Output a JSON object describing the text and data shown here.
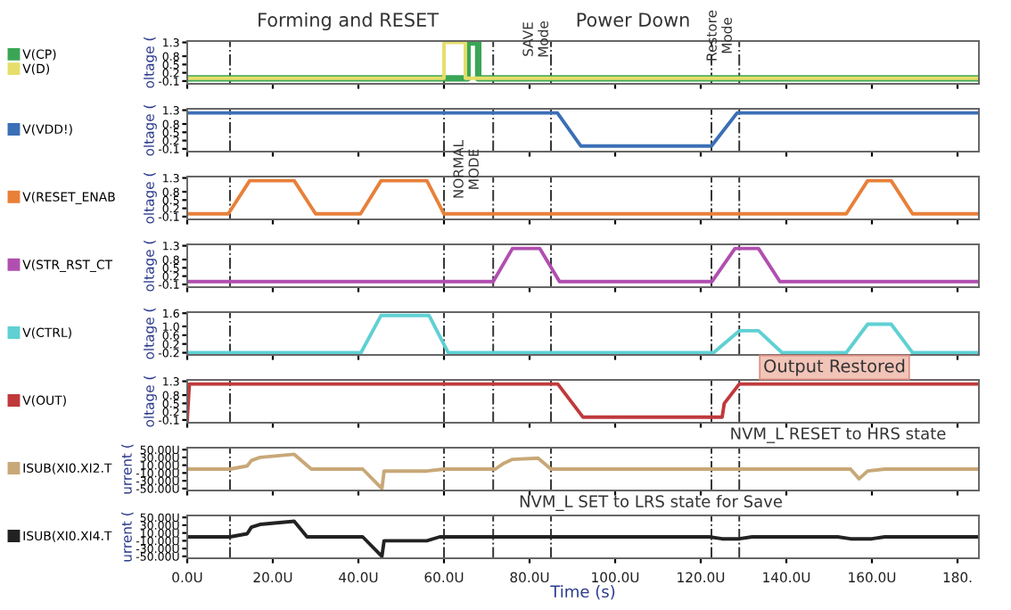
{
  "chart_data": [
    {
      "type": "line",
      "ylabel": "oltage (",
      "legend": "left",
      "tick_labels": "y",
      "xlim": [
        0,
        185
      ],
      "xticks": [
        0,
        20,
        40,
        60,
        80,
        100,
        120,
        140,
        160,
        180
      ],
      "ylim": [
        -0.2,
        1.35
      ],
      "yticks": [
        -0.1,
        0.2,
        0.5,
        0.8,
        1.3
      ],
      "series": [
        {
          "name": "V(CP)",
          "color": "#3aa655",
          "x": [
            0,
            65.5,
            65.5,
            68,
            68,
            185
          ],
          "values": [
            0,
            0,
            1.3,
            1.3,
            0,
            0
          ]
        },
        {
          "name": "V(D)",
          "color": "#e6de6a",
          "x": [
            0,
            60,
            60,
            65,
            65,
            185
          ],
          "values": [
            0,
            0,
            1.3,
            1.3,
            0,
            0
          ]
        }
      ],
      "ref_lines": [
        {
          "axis": "x",
          "value": 10
        },
        {
          "axis": "x",
          "value": 60
        },
        {
          "axis": "x",
          "value": 71.5
        },
        {
          "axis": "x",
          "value": 85
        },
        {
          "axis": "x",
          "value": 122.5
        },
        {
          "axis": "x",
          "value": 129
        }
      ],
      "annotations": [
        "Forming and RESET",
        "SAVE Mode",
        "Power Down",
        "Restore Mode"
      ]
    },
    {
      "type": "line",
      "ylabel": "oltage (",
      "legend": "left",
      "tick_labels": "y",
      "xlim": [
        0,
        185
      ],
      "xticks": [
        0,
        20,
        40,
        60,
        80,
        100,
        120,
        140,
        160,
        180
      ],
      "ylim": [
        -0.2,
        1.35
      ],
      "yticks": [
        -0.1,
        0.2,
        0.5,
        0.8,
        1.3
      ],
      "series": [
        {
          "name": "V(VDD!)",
          "color": "#3b6fb6",
          "x": [
            0,
            86.5,
            92,
            122.5,
            128.5,
            185
          ],
          "values": [
            1.2,
            1.2,
            0,
            0,
            1.2,
            1.2
          ]
        }
      ],
      "ref_lines": [
        {
          "axis": "x",
          "value": 10
        },
        {
          "axis": "x",
          "value": 60
        },
        {
          "axis": "x",
          "value": 71.5
        },
        {
          "axis": "x",
          "value": 85
        },
        {
          "axis": "x",
          "value": 122.5
        },
        {
          "axis": "x",
          "value": 129
        }
      ],
      "annotations": [
        "NORMAL MODE"
      ]
    },
    {
      "type": "line",
      "ylabel": "oltage (",
      "legend": "left",
      "tick_labels": "y",
      "xlim": [
        0,
        185
      ],
      "xticks": [
        0,
        20,
        40,
        60,
        80,
        100,
        120,
        140,
        160,
        180
      ],
      "ylim": [
        -0.2,
        1.35
      ],
      "yticks": [
        -0.1,
        0.2,
        0.5,
        0.8,
        1.3
      ],
      "series": [
        {
          "name": "V(RESET_ENAB",
          "color": "#e8803a",
          "x": [
            0,
            9.6,
            14.6,
            25,
            30,
            40.5,
            45.3,
            56,
            60,
            154,
            159,
            164.5,
            169.5,
            185
          ],
          "values": [
            0,
            0,
            1.2,
            1.2,
            0,
            0,
            1.2,
            1.2,
            0,
            0,
            1.2,
            1.2,
            0,
            0
          ]
        }
      ],
      "ref_lines": [
        {
          "axis": "x",
          "value": 10
        },
        {
          "axis": "x",
          "value": 60
        },
        {
          "axis": "x",
          "value": 71.5
        },
        {
          "axis": "x",
          "value": 85
        },
        {
          "axis": "x",
          "value": 122.5
        },
        {
          "axis": "x",
          "value": 129
        }
      ]
    },
    {
      "type": "line",
      "ylabel": "oltage (",
      "legend": "left",
      "tick_labels": "y",
      "xlim": [
        0,
        185
      ],
      "xticks": [
        0,
        20,
        40,
        60,
        80,
        100,
        120,
        140,
        160,
        180
      ],
      "ylim": [
        -0.2,
        1.35
      ],
      "yticks": [
        -0.1,
        0.2,
        0.5,
        0.8,
        1.3
      ],
      "series": [
        {
          "name": "V(STR_RST_CT",
          "color": "#b04fb0",
          "x": [
            0,
            71.5,
            76,
            82.4,
            87,
            122.6,
            128,
            133.5,
            138.5,
            185
          ],
          "values": [
            0,
            0,
            1.2,
            1.2,
            0,
            0,
            1.2,
            1.2,
            0,
            0
          ]
        }
      ],
      "ref_lines": [
        {
          "axis": "x",
          "value": 10
        },
        {
          "axis": "x",
          "value": 60
        },
        {
          "axis": "x",
          "value": 71.5
        },
        {
          "axis": "x",
          "value": 85
        },
        {
          "axis": "x",
          "value": 122.5
        },
        {
          "axis": "x",
          "value": 129
        }
      ]
    },
    {
      "type": "line",
      "ylabel": "oltage (",
      "legend": "left",
      "tick_labels": "y",
      "xlim": [
        0,
        185
      ],
      "xticks": [
        0,
        20,
        40,
        60,
        80,
        100,
        120,
        140,
        160,
        180
      ],
      "ylim": [
        -0.3,
        1.65
      ],
      "yticks": [
        -0.2,
        0.2,
        0.6,
        {
          "value": 1.0,
          "label": "1.0"
        },
        1.6
      ],
      "series": [
        {
          "name": "V(CTRL)",
          "color": "#5fd0d3",
          "x": [
            0,
            40.6,
            45.3,
            56.5,
            61,
            123,
            129,
            133.5,
            139,
            154,
            159,
            164.5,
            169.5,
            185
          ],
          "values": [
            -0.2,
            -0.2,
            1.5,
            1.5,
            -0.2,
            -0.2,
            0.8,
            0.8,
            -0.2,
            -0.2,
            1.1,
            1.1,
            -0.2,
            -0.2
          ]
        }
      ],
      "ref_lines": [
        {
          "axis": "x",
          "value": 10
        },
        {
          "axis": "x",
          "value": 60
        },
        {
          "axis": "x",
          "value": 71.5
        },
        {
          "axis": "x",
          "value": 85
        },
        {
          "axis": "x",
          "value": 122.5
        },
        {
          "axis": "x",
          "value": 129
        }
      ],
      "annotations": [
        "Output Restored"
      ]
    },
    {
      "type": "line",
      "ylabel": "oltage (",
      "legend": "left",
      "tick_labels": "y",
      "xlim": [
        0,
        185
      ],
      "xticks": [
        0,
        20,
        40,
        60,
        80,
        100,
        120,
        140,
        160,
        180
      ],
      "ylim": [
        -0.2,
        1.35
      ],
      "yticks": [
        -0.1,
        0.2,
        0.5,
        0.8,
        1.3
      ],
      "series": [
        {
          "name": "V(OUT)",
          "color": "#c0393b",
          "x": [
            0,
            0.5,
            86.6,
            92.5,
            125,
            125.5,
            129,
            185
          ],
          "values": [
            -0.1,
            1.2,
            1.2,
            0,
            0,
            0.5,
            1.2,
            1.2
          ]
        }
      ],
      "ref_lines": [
        {
          "axis": "x",
          "value": 10
        },
        {
          "axis": "x",
          "value": 60
        },
        {
          "axis": "x",
          "value": 71.5
        },
        {
          "axis": "x",
          "value": 85
        },
        {
          "axis": "x",
          "value": 122.5
        },
        {
          "axis": "x",
          "value": 129
        }
      ],
      "annotations": [
        "NVM_L RESET to HRS state"
      ]
    },
    {
      "type": "line",
      "ylabel": "urrent (",
      "legend": "left",
      "tick_labels": "y",
      "xlim": [
        0,
        185
      ],
      "xticks": [
        0,
        20,
        40,
        60,
        80,
        100,
        120,
        140,
        160,
        180
      ],
      "ylim": [
        -55,
        55
      ],
      "yticks": [
        {
          "value": 50,
          "label": "50.00U"
        },
        {
          "value": 30,
          "label": "30.00U"
        },
        {
          "value": 10,
          "label": "10.00U"
        },
        {
          "value": -10,
          "label": "-10.00U"
        },
        {
          "value": -30,
          "label": "-30.00U"
        },
        {
          "value": -50,
          "label": "-50.00U"
        }
      ],
      "series": [
        {
          "name": "ISUB(XI0.XI2.T",
          "color": "#c8a878",
          "x": [
            0,
            10,
            14,
            15,
            17,
            25,
            29,
            41,
            45.5,
            46,
            56,
            60,
            72,
            74,
            76,
            82,
            85,
            155,
            157,
            159,
            163,
            185
          ],
          "values": [
            0,
            0,
            8,
            22,
            30,
            38,
            0,
            0,
            -50,
            -5,
            -5,
            0,
            0,
            15,
            25,
            28,
            0,
            0,
            -25,
            -5,
            0,
            0
          ]
        }
      ],
      "ref_lines": [
        {
          "axis": "x",
          "value": 10
        },
        {
          "axis": "x",
          "value": 60
        },
        {
          "axis": "x",
          "value": 71.5
        },
        {
          "axis": "x",
          "value": 85
        },
        {
          "axis": "x",
          "value": 122.5
        },
        {
          "axis": "x",
          "value": 129
        }
      ],
      "annotations": [
        "NVM_L SET to LRS state for Save"
      ]
    },
    {
      "type": "line",
      "ylabel": "urrent (",
      "xlabel": "Time (s)",
      "legend": "left",
      "xlim": [
        0,
        185
      ],
      "xticks": [
        {
          "value": 0,
          "label": "0.0U"
        },
        {
          "value": 20,
          "label": "20.0U"
        },
        {
          "value": 40,
          "label": "40.0U"
        },
        {
          "value": 60,
          "label": "60.0U"
        },
        {
          "value": 80,
          "label": "80.0U"
        },
        {
          "value": 100,
          "label": "100.0U"
        },
        {
          "value": 120,
          "label": "120.0U"
        },
        {
          "value": 140,
          "label": "140.0U"
        },
        {
          "value": 160,
          "label": "160.0U"
        },
        {
          "value": 180,
          "label": "180."
        }
      ],
      "ylim": [
        -55,
        55
      ],
      "yticks": [
        {
          "value": 50,
          "label": "50.00U"
        },
        {
          "value": 30,
          "label": "30.00U"
        },
        {
          "value": 10,
          "label": "10.00U"
        },
        {
          "value": -10,
          "label": "-10.00U"
        },
        {
          "value": -30,
          "label": "-30.00U"
        },
        {
          "value": -50,
          "label": "-50.00U"
        }
      ],
      "series": [
        {
          "name": "ISUB(XI0.XI4.T",
          "color": "#222222",
          "x": [
            0,
            10,
            14,
            15,
            17,
            25,
            28,
            41,
            45.5,
            46,
            56,
            59,
            122,
            125,
            129,
            132,
            152,
            155,
            160,
            163,
            185
          ],
          "values": [
            0,
            0,
            8,
            25,
            32,
            40,
            0,
            0,
            -50,
            -10,
            -10,
            0,
            0,
            -5,
            -5,
            0,
            0,
            -5,
            -5,
            0,
            0
          ]
        }
      ],
      "ref_lines": [
        {
          "axis": "x",
          "value": 10
        },
        {
          "axis": "x",
          "value": 60
        },
        {
          "axis": "x",
          "value": 71.5
        },
        {
          "axis": "x",
          "value": 85
        },
        {
          "axis": "x",
          "value": 122.5
        },
        {
          "axis": "x",
          "value": 129
        }
      ]
    }
  ]
}
